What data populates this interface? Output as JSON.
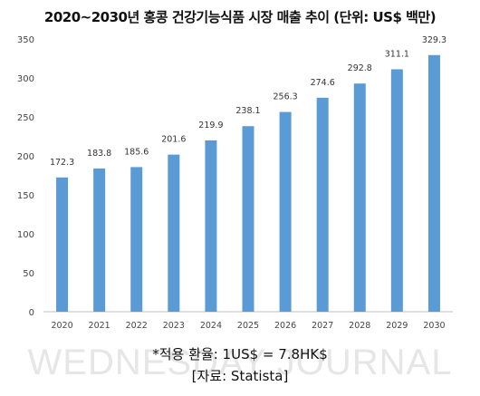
{
  "chart_data": {
    "type": "bar",
    "title": "2020~2030년 홍콩 건강기능식품 시장 매출 추이 (단위: US$ 백만)",
    "categories": [
      "2020",
      "2021",
      "2022",
      "2023",
      "2024",
      "2025",
      "2026",
      "2027",
      "2028",
      "2029",
      "2030"
    ],
    "values": [
      172.3,
      183.8,
      185.6,
      201.6,
      219.9,
      238.1,
      256.3,
      274.6,
      292.8,
      311.1,
      329.3
    ],
    "value_labels": [
      "172.3",
      "183.8",
      "185.6",
      "201.6",
      "219.9",
      "238.1",
      "256.3",
      "274.6",
      "292.8",
      "311.1",
      "329.3"
    ],
    "ylim": [
      0,
      350
    ],
    "yticks": [
      "0",
      "50",
      "100",
      "150",
      "200",
      "250",
      "300",
      "350"
    ],
    "grid": false,
    "bar_color": "#5b9bd5",
    "xlabel": "",
    "ylabel": ""
  },
  "footer": {
    "note": "*적용 환율: 1US$ = 7.8HK$",
    "source": "[자료: Statista]",
    "watermark": "WEDNESDAY JOURNAL"
  }
}
